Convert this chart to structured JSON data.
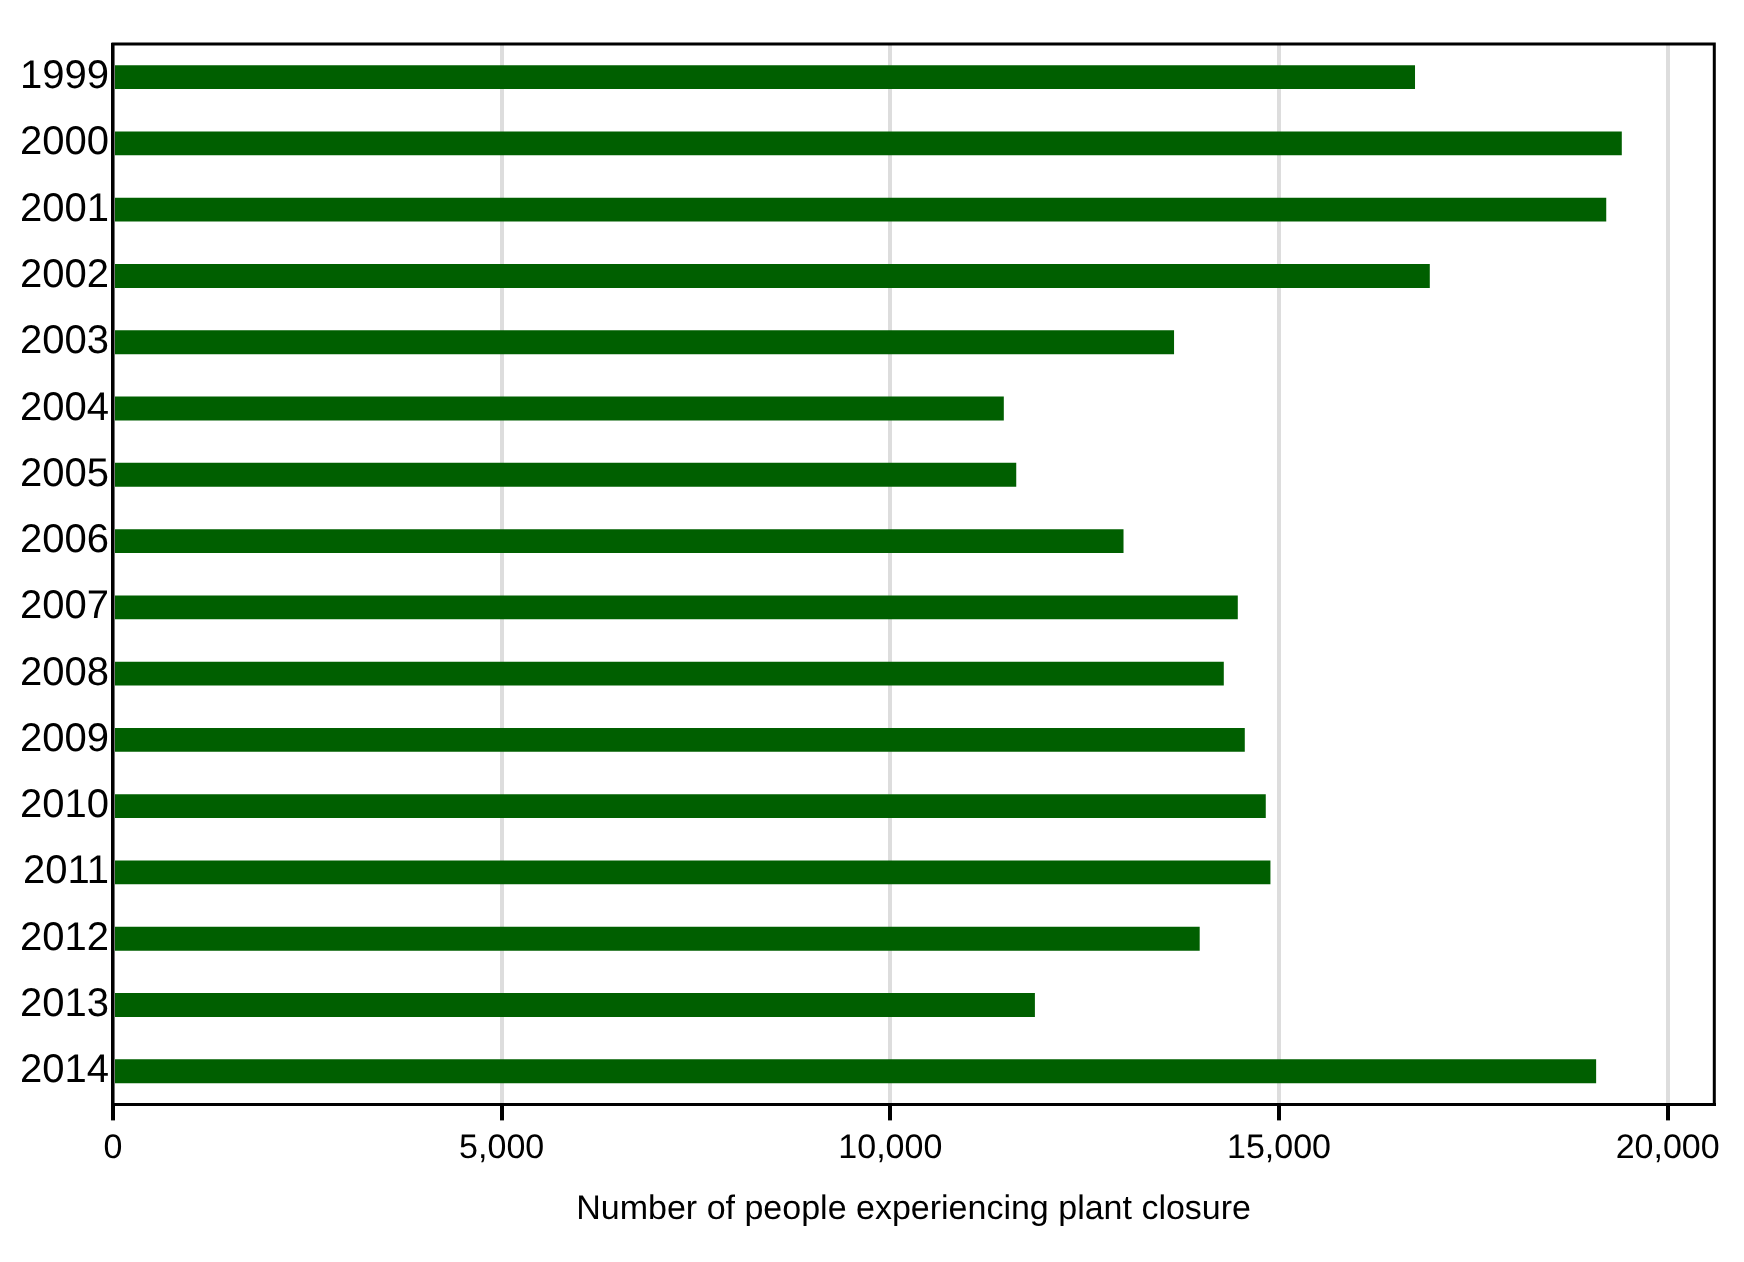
{
  "chart_data": {
    "type": "bar",
    "orientation": "horizontal",
    "xlabel": "Number of people experiencing plant closure",
    "categories": [
      "1999",
      "2000",
      "2001",
      "2002",
      "2003",
      "2004",
      "2005",
      "2006",
      "2007",
      "2008",
      "2009",
      "2010",
      "2011",
      "2012",
      "2013",
      "2014"
    ],
    "values": [
      16750,
      19410,
      19210,
      16940,
      13650,
      11460,
      11620,
      13000,
      14470,
      14290,
      14560,
      14830,
      14890,
      13980,
      11860,
      19080
    ],
    "color": "#005f00",
    "xlim": [
      0,
      20600
    ],
    "xticks": [
      {
        "value": 0,
        "label": "0"
      },
      {
        "value": 5000,
        "label": "5,000"
      },
      {
        "value": 10000,
        "label": "10,000"
      },
      {
        "value": 15000,
        "label": "15,000"
      },
      {
        "value": 20000,
        "label": "20,000"
      }
    ],
    "grid": "x",
    "legend": false
  }
}
